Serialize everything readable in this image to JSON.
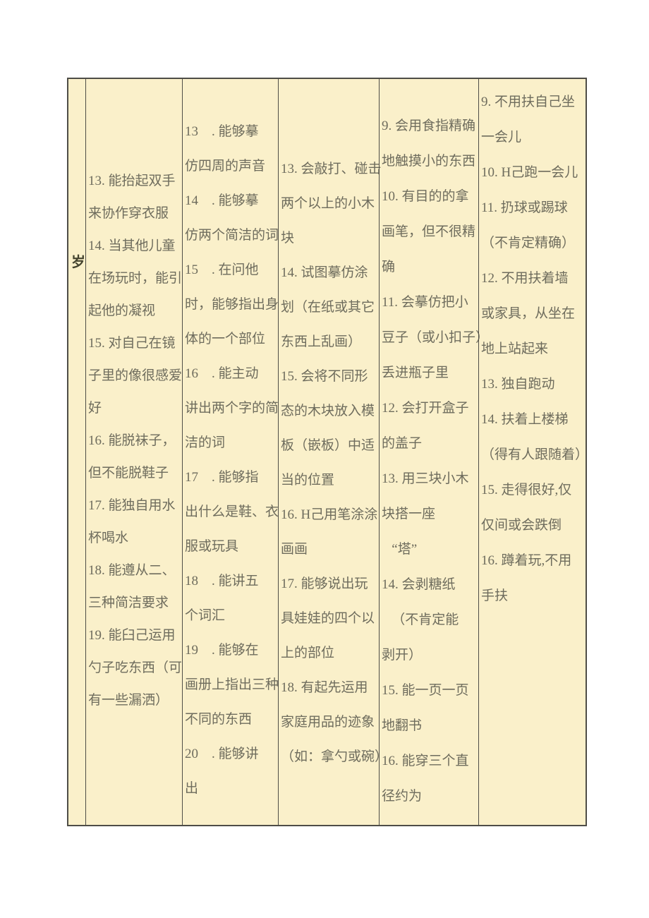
{
  "table": {
    "row_label": "岁",
    "colors": {
      "cell_background": "#faf0ca",
      "border": "#4e4d47",
      "body_text": "#6e6c5d",
      "label_text": "#45442f",
      "page_background": "#ffffff"
    },
    "columns": [
      {
        "lines": [
          "13. 能抬起双手",
          "来协作穿衣服",
          "14. 当其他儿童",
          "在场玩时，能引",
          "起他的凝视",
          "15. 对自己在镜",
          "子里的像很感爱",
          "好",
          "16. 能脱袜子，",
          "但不能脱鞋子",
          "17. 能独自用水",
          "杯喝水",
          "18. 能遵从二、",
          "三种简洁要求",
          "19. 能臼己运用",
          "勺子吃东西（可",
          "有一些漏洒）"
        ]
      },
      {
        "lines": [
          "13    . 能够摹",
          "仿四周的声音",
          "14    . 能够摹",
          "仿两个简洁的词",
          "15    . 在问他",
          "时，能够指出身",
          "体的一个部位",
          "16    . 能主动",
          "讲出两个字的简",
          "洁的词",
          "17    . 能够指",
          "出什么是鞋、衣",
          "服或玩具",
          "18    . 能讲五",
          "个词汇",
          "19    . 能够在",
          "画册上指出三种",
          "不同的东西",
          "20    . 能够讲",
          "出"
        ]
      },
      {
        "lines": [
          "13. 会敲打、碰击",
          "两个以上的小木",
          "块",
          "14. 试图摹仿涂",
          "划（在纸或其它",
          "东西上乱画）",
          "15. 会将不同形",
          "态的木块放入模",
          "板（嵌板）中适",
          "当的位置",
          "16. H己用笔涂涂",
          "画画",
          "17. 能够说出玩",
          "具娃娃的四个以",
          "上的部位",
          "18. 有起先运用",
          "家庭用品的迹象",
          "（如：拿勺或碗）"
        ]
      },
      {
        "lines": [
          "9. 会用食指精确",
          "地触摸小的东西",
          "10. 有目的的拿",
          "画笔，但不很精",
          "确",
          "11. 会摹仿把小",
          "豆子（或小扣子）",
          "丢进瓶子里",
          "12. 会打开盒子",
          "的盖子",
          "13. 用三块小木",
          "块搭一座",
          "   “塔”",
          "14. 会剥糖纸",
          "   （不肯定能",
          "剥开）",
          "15. 能一页一页",
          "地翻书",
          "16. 能穿三个直",
          "径约为"
        ]
      },
      {
        "lines": [
          "9. 不用扶自己坐",
          "一会儿",
          "10. H己跑一会儿",
          "11. 扔球或踢球",
          "（不肯定精确）",
          "12. 不用扶着墙",
          "或家具，从坐在",
          "地上站起来",
          "13. 独自跑动",
          "14. 扶着上楼梯",
          "（得有人跟随着）",
          "15. 走得很好,仅",
          "仅间或会跌倒",
          "16. 蹲着玩,不用",
          "手扶"
        ]
      }
    ]
  }
}
